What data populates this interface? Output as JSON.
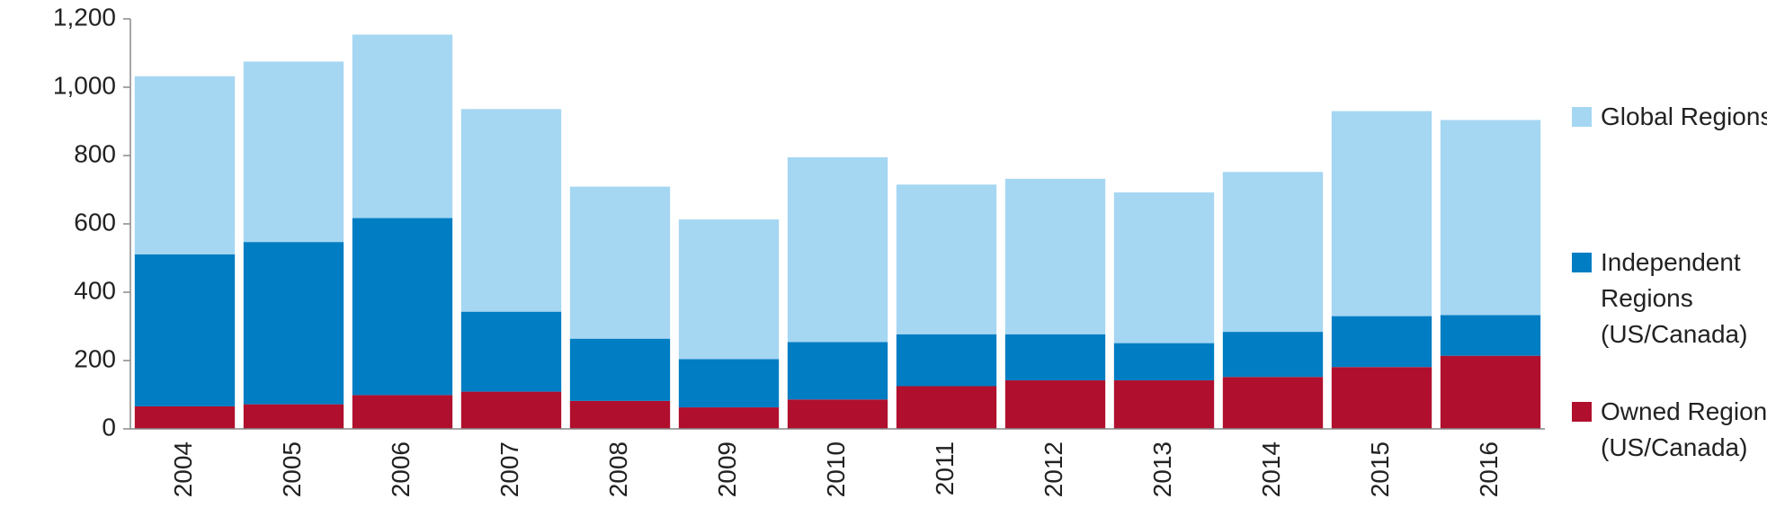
{
  "chart_data": {
    "type": "stacked_bar",
    "categories": [
      "2004",
      "2005",
      "2006",
      "2007",
      "2008",
      "2009",
      "2010",
      "2011",
      "2012",
      "2013",
      "2014",
      "2015",
      "2016"
    ],
    "series": [
      {
        "name": "Owned Regions (US/Canada)",
        "color": "#b10f2e",
        "values": [
          66,
          72,
          99,
          109,
          82,
          63,
          86,
          125,
          142,
          142,
          152,
          181,
          214
        ]
      },
      {
        "name": "Independent Regions (US/Canada)",
        "color": "#007dc3",
        "values": [
          445,
          475,
          518,
          234,
          182,
          141,
          168,
          152,
          135,
          109,
          132,
          149,
          119
        ]
      },
      {
        "name": "Global Regions",
        "color": "#a5d6f2",
        "values": [
          521,
          528,
          537,
          593,
          445,
          409,
          541,
          438,
          455,
          441,
          468,
          600,
          571
        ]
      }
    ],
    "ylim": [
      0,
      1200
    ],
    "yticks": [
      0,
      200,
      400,
      600,
      800,
      {
        "value": 1000,
        "label": "1,000"
      },
      {
        "value": 1200,
        "label": "1,200"
      }
    ],
    "grid": false,
    "legend": "right"
  }
}
